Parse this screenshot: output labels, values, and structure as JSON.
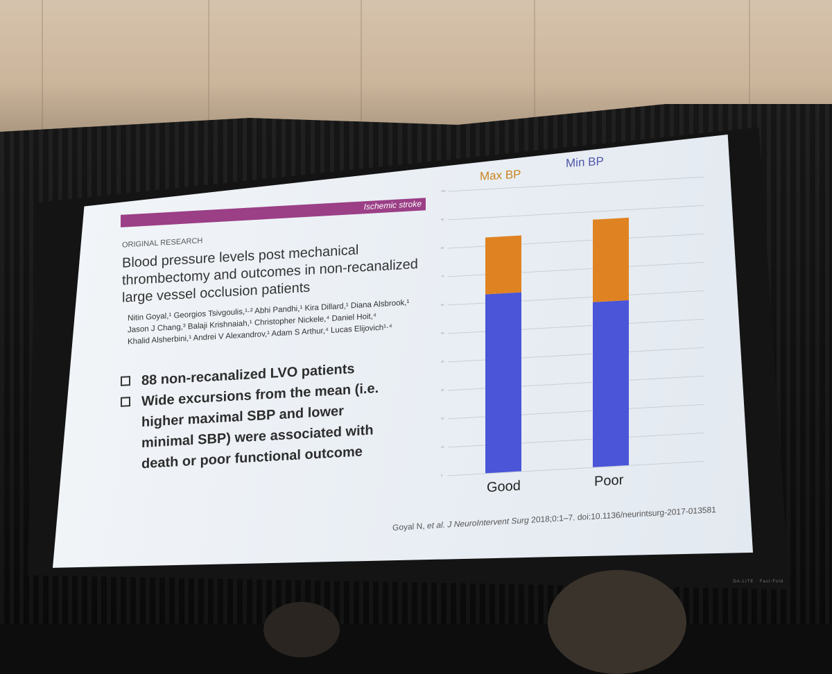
{
  "slide": {
    "banner_label": "Ischemic stroke",
    "section_label": "ORIGINAL RESEARCH",
    "title": "Blood pressure levels post mechanical thrombectomy and outcomes in non-recanalized large vessel occlusion patients",
    "authors": [
      "Nitin Goyal,¹ Georgios Tsivgoulis,¹·² Abhi Pandhi,¹ Kira Dillard,¹ Diana Alsbrook,¹",
      "Jason J Chang,³ Balaji Krishnaiah,¹ Christopher Nickele,⁴ Daniel Hoit,⁴",
      "Khalid Alsherbini,¹ Andrei V Alexandrov,¹ Adam S Arthur,⁴ Lucas Elijovich¹·⁴"
    ],
    "bullets": [
      "88 non-recanalized LVO patients",
      "Wide excursions from the mean (i.e. higher maximal SBP and lower minimal SBP) were associated with death or poor functional outcome"
    ],
    "citation": {
      "authors": "Goyal N,",
      "etal": "et al.",
      "journal": "J NeuroIntervent Surg",
      "rest": "2018;0:1–7. doi:10.1136/neurintsurg-2017-013581"
    }
  },
  "chart_data": {
    "type": "bar",
    "stacked": true,
    "categories": [
      "Good",
      "Poor"
    ],
    "series": [
      {
        "name": "Min BP",
        "color": "#4a55d8",
        "values": [
          63,
          58
        ]
      },
      {
        "name": "Max BP",
        "color": "#df8322",
        "values": [
          20,
          29
        ]
      }
    ],
    "legend": [
      "Max BP",
      "Min BP"
    ],
    "ylim": [
      0,
      100
    ],
    "yticks": [
      0,
      10,
      20,
      30,
      40,
      50,
      60,
      70,
      80,
      90,
      100
    ]
  },
  "colors": {
    "banner": "#9b3f86",
    "max_bp": "#df8322",
    "min_bp": "#4a55d8"
  }
}
